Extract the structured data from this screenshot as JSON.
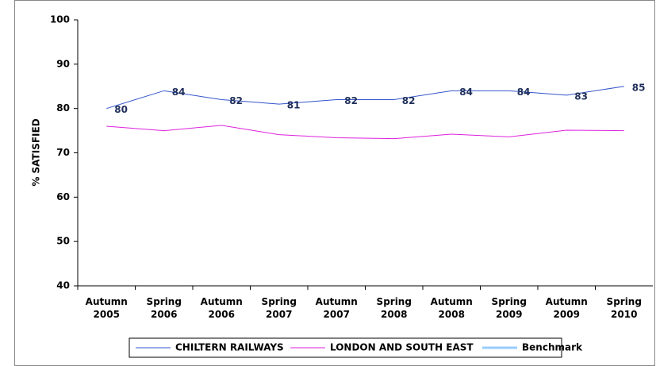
{
  "chart_data": {
    "type": "line",
    "y_label": "% SATISFIED",
    "categories": [
      "Autumn 2005",
      "Spring 2006",
      "Autumn 2006",
      "Spring 2007",
      "Autumn 2007",
      "Spring 2008",
      "Autumn 2008",
      "Spring 2009",
      "Autumn 2009",
      "Spring 2010"
    ],
    "series": [
      {
        "name": "CHILTERN RAILWAYS",
        "color": "#3355cc",
        "values": [
          80,
          84,
          82,
          81,
          82,
          82,
          84,
          84,
          83,
          85
        ],
        "data_labels": true
      },
      {
        "name": "LONDON AND SOUTH EAST",
        "color": "#dd22dd",
        "values": [
          76,
          75,
          76.2,
          74.1,
          73.4,
          73.2,
          74.2,
          73.6,
          75.1,
          75.0
        ],
        "data_labels": false
      },
      {
        "name": "Benchmark",
        "color": "#99ccff",
        "values": [
          null,
          null,
          null,
          null,
          null,
          null,
          null,
          null,
          null,
          null
        ],
        "data_labels": false
      }
    ],
    "ylim": [
      40,
      100
    ],
    "yticks": [
      40,
      50,
      60,
      70,
      80,
      90,
      100
    ],
    "legend": "bottom"
  }
}
